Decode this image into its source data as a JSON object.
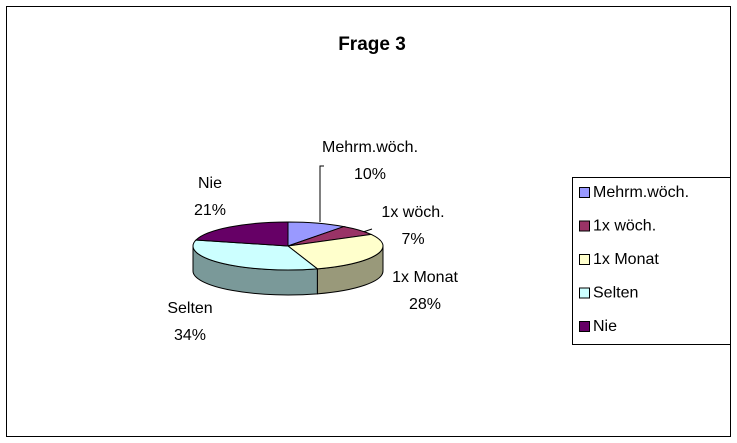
{
  "chart_data": {
    "type": "pie",
    "title": "Frage 3",
    "categories": [
      "Mehrm.wöch.",
      "1x wöch.",
      "1x Monat",
      "Selten",
      "Nie"
    ],
    "values": [
      10,
      7,
      28,
      34,
      21
    ],
    "value_labels": [
      "10%",
      "7%",
      "28%",
      "34%",
      "21%"
    ],
    "colors": [
      "#9999ff",
      "#993366",
      "#ffffcc",
      "#ccffff",
      "#660066"
    ],
    "legend": "right"
  }
}
